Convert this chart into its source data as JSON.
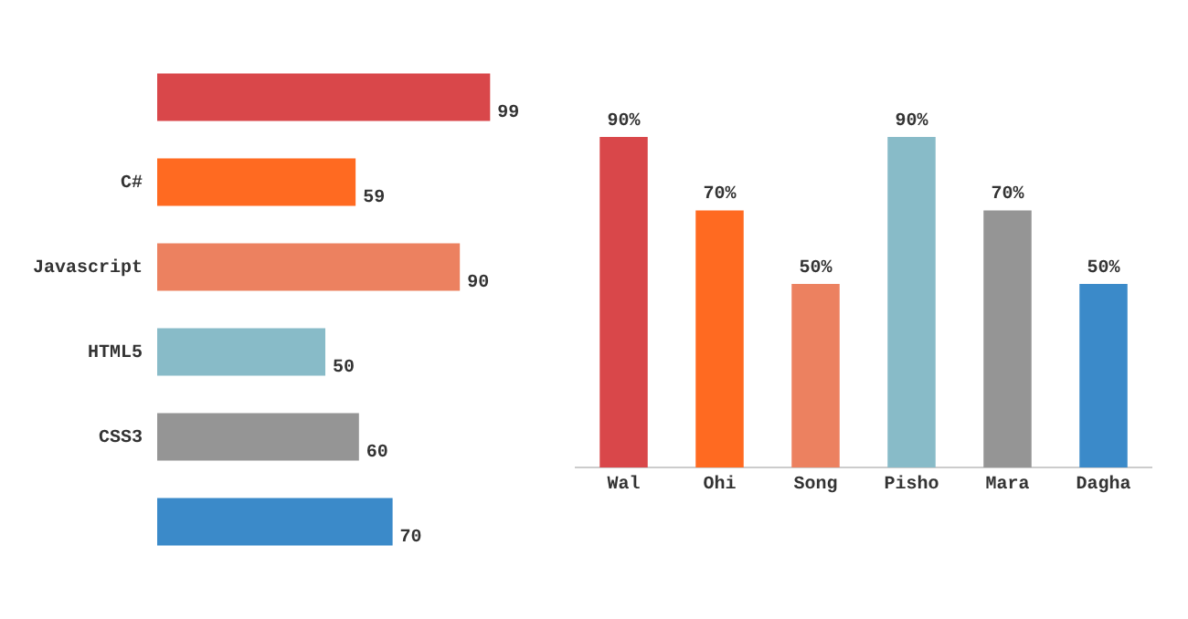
{
  "chart_data": [
    {
      "type": "bar",
      "orientation": "horizontal",
      "categories": [
        null,
        "C#",
        "Javascript",
        "HTML5",
        "CSS3",
        null
      ],
      "values": [
        99,
        59,
        90,
        50,
        60,
        70
      ],
      "colors": [
        "#d9474a",
        "#ff6a21",
        "#ec8160",
        "#88bbc8",
        "#959595",
        "#3b8ac9"
      ],
      "data_labels": true,
      "tick_labels": "y"
    },
    {
      "type": "bar",
      "categories": [
        "Wal",
        "Ohi",
        "Song",
        "Pisho",
        "Mara",
        "Dagha"
      ],
      "values": [
        90,
        70,
        50,
        90,
        70,
        50
      ],
      "colors": [
        "#d9474a",
        "#ff6a21",
        "#ec8160",
        "#88bbc8",
        "#959595",
        "#3b8ac9"
      ],
      "value_labels": [
        "90%",
        "70%",
        "50%",
        "90%",
        "70%",
        "50%"
      ],
      "tick_labels": "x"
    }
  ]
}
